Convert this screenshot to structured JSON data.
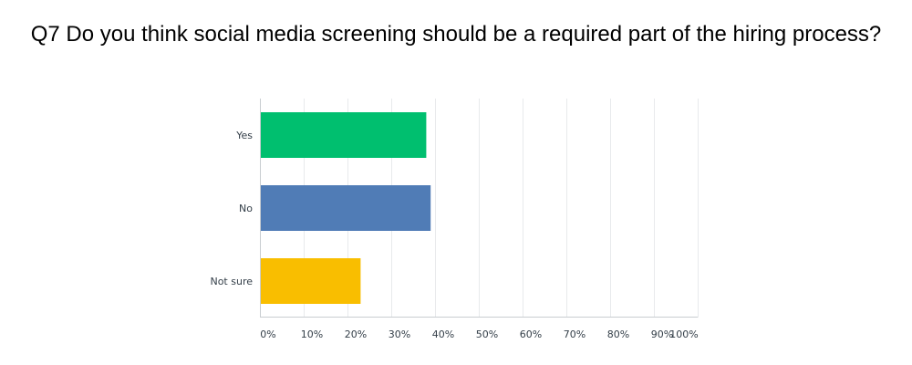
{
  "title": "Q7 Do you think social media screening should be a required part of the hiring process?",
  "chart_data": {
    "type": "bar",
    "orientation": "horizontal",
    "categories": [
      "Yes",
      "No",
      "Not sure"
    ],
    "values": [
      38,
      39,
      23
    ],
    "colors": [
      "#00bf6f",
      "#507cb6",
      "#f9be00"
    ],
    "xlim": [
      0,
      100
    ],
    "xticks": [
      "0%",
      "10%",
      "20%",
      "30%",
      "40%",
      "50%",
      "60%",
      "70%",
      "80%",
      "90%",
      "100%"
    ],
    "grid": true
  }
}
